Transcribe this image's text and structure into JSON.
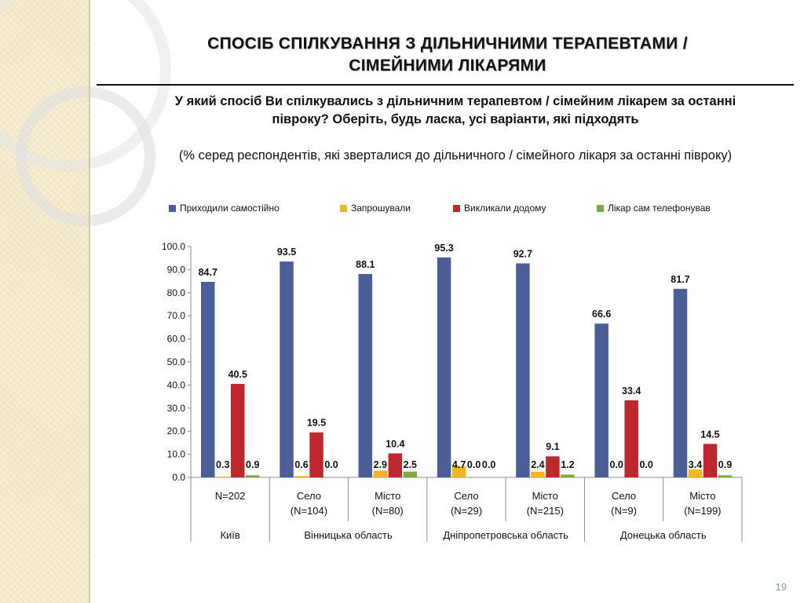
{
  "slide": {
    "title": "СПОСІБ СПІЛКУВАННЯ З ДІЛЬНИЧНИМИ ТЕРАПЕВТАМИ / СІМЕЙНИМИ ЛІКАРЯМИ",
    "question": "У який спосіб Ви спілкувались з дільничним терапевтом / сімейним лікарем за останні півроку? Оберіть, будь ласка, усі варіанти, які підходять",
    "subtitle": "(% серед респондентів, які зверталися до дільничного / сімейного лікаря за останні півроку)",
    "page_number": "19"
  },
  "chart_data": {
    "type": "bar",
    "ylim": [
      0,
      100
    ],
    "yticks": [
      "0.0",
      "10.0",
      "20.0",
      "30.0",
      "40.0",
      "50.0",
      "60.0",
      "70.0",
      "80.0",
      "90.0",
      "100.0"
    ],
    "categories": [
      {
        "label1": "N=202",
        "label2": ""
      },
      {
        "label1": "Село",
        "label2": "(N=104)"
      },
      {
        "label1": "Місто",
        "label2": "(N=80)"
      },
      {
        "label1": "Село",
        "label2": "(N=29)"
      },
      {
        "label1": "Місто",
        "label2": "(N=215)"
      },
      {
        "label1": "Село",
        "label2": "(N=9)"
      },
      {
        "label1": "Місто",
        "label2": "(N=199)"
      }
    ],
    "groups": [
      {
        "label": "Київ",
        "span": 1
      },
      {
        "label": "Вінницька область",
        "span": 2
      },
      {
        "label": "Дніпропетровська область",
        "span": 2
      },
      {
        "label": "Донецька область",
        "span": 2
      }
    ],
    "series": [
      {
        "name": "Приходили самостійно",
        "color": "#4a5f9a",
        "values": [
          84.7,
          93.5,
          88.1,
          95.3,
          92.7,
          66.6,
          81.7
        ],
        "labels": [
          "84.7",
          "93.5",
          "88.1",
          "95.3",
          "92.7",
          "66.6",
          "81.7"
        ]
      },
      {
        "name": "Запрошували",
        "color": "#f5b718",
        "values": [
          0.3,
          0.6,
          2.9,
          4.7,
          2.4,
          0.0,
          3.4
        ],
        "labels": [
          "0.3",
          "0.6",
          "2.9",
          "4.7",
          "2.4",
          "0.0",
          "3.4"
        ]
      },
      {
        "name": "Викликали додому",
        "color": "#c0272d",
        "values": [
          40.5,
          19.5,
          10.4,
          0.0,
          9.1,
          33.4,
          14.5
        ],
        "labels": [
          "40.5",
          "19.5",
          "10.4",
          "0.0",
          "9.1",
          "33.4",
          "14.5"
        ]
      },
      {
        "name": "Лікар сам телефонував",
        "color": "#7aab3c",
        "values": [
          0.9,
          0.0,
          2.5,
          0.0,
          1.2,
          0.0,
          0.9
        ],
        "labels": [
          "0.9",
          "0.0",
          "2.5",
          "0.0",
          "1.2",
          "0.0",
          "0.9"
        ]
      }
    ]
  }
}
